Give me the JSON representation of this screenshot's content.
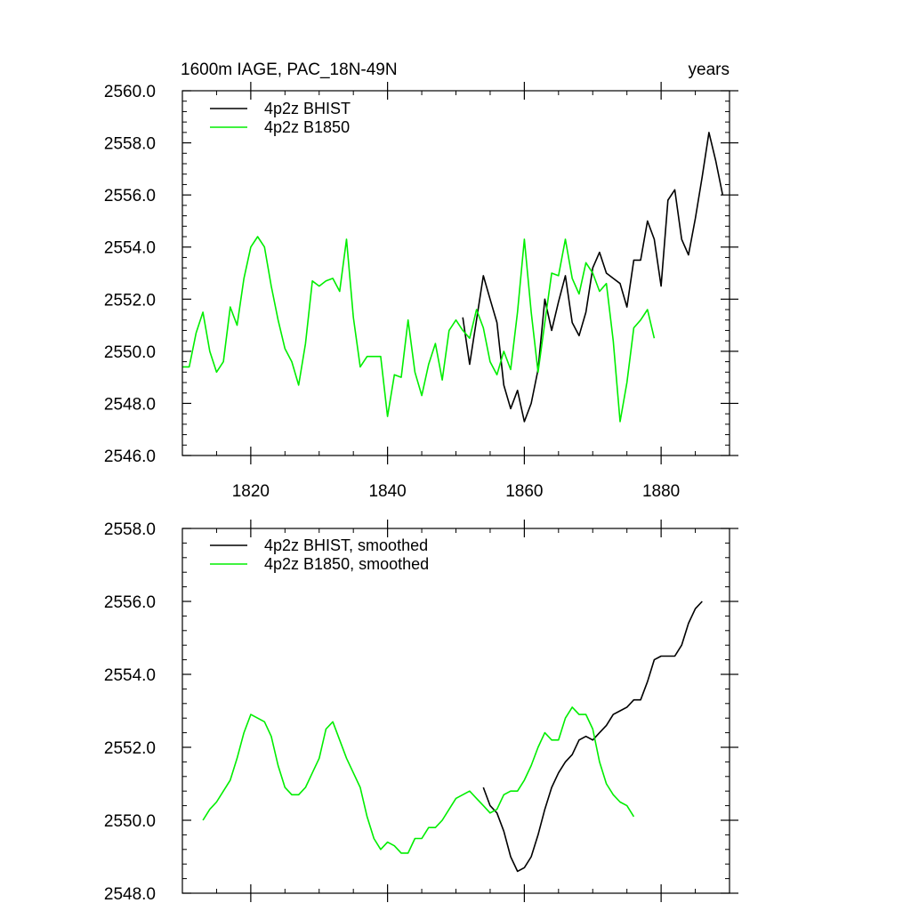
{
  "colors": {
    "bhist": "#000000",
    "b1850": "#00ee00"
  },
  "chart_data": [
    {
      "type": "line",
      "title_left": "1600m IAGE, PAC_18N-49N",
      "title_right": "years",
      "xlim": [
        1810,
        1890
      ],
      "ylim": [
        2546,
        2560
      ],
      "x_ticks": [
        1820,
        1840,
        1860,
        1880
      ],
      "x_tick_labels": [
        "1820",
        "1840",
        "1860",
        "1880"
      ],
      "y_ticks": [
        2546,
        2548,
        2550,
        2552,
        2554,
        2556,
        2558,
        2560
      ],
      "y_tick_labels": [
        "2546.0",
        "2548.0",
        "2550.0",
        "2552.0",
        "2554.0",
        "2556.0",
        "2558.0",
        "2560.0"
      ],
      "legend_position": "top-left",
      "series": [
        {
          "name": "4p2z BHIST",
          "color": "#000000",
          "x": [
            1851,
            1852,
            1853,
            1854,
            1855,
            1856,
            1857,
            1858,
            1859,
            1860,
            1861,
            1862,
            1863,
            1864,
            1865,
            1866,
            1867,
            1868,
            1869,
            1870,
            1871,
            1872,
            1873,
            1874,
            1875,
            1876,
            1877,
            1878,
            1879,
            1880,
            1881,
            1882,
            1883,
            1884,
            1885,
            1886,
            1887,
            1888,
            1889
          ],
          "y": [
            2551.3,
            2549.5,
            2551.2,
            2552.9,
            2552.0,
            2551.1,
            2548.7,
            2547.8,
            2548.5,
            2547.3,
            2548.0,
            2549.3,
            2552.0,
            2550.8,
            2551.9,
            2552.9,
            2551.1,
            2550.6,
            2551.5,
            2553.2,
            2553.8,
            2553.0,
            2552.8,
            2552.6,
            2551.7,
            2553.5,
            2553.5,
            2555.0,
            2554.3,
            2552.5,
            2555.8,
            2556.2,
            2554.3,
            2553.7,
            2555.1,
            2556.7,
            2558.4,
            2557.3,
            2556.0
          ]
        },
        {
          "name": "4p2z B1850",
          "color": "#00ee00",
          "x": [
            1810,
            1811,
            1812,
            1813,
            1814,
            1815,
            1816,
            1817,
            1818,
            1819,
            1820,
            1821,
            1822,
            1823,
            1824,
            1825,
            1826,
            1827,
            1828,
            1829,
            1830,
            1831,
            1832,
            1833,
            1834,
            1835,
            1836,
            1837,
            1838,
            1839,
            1840,
            1841,
            1842,
            1843,
            1844,
            1845,
            1846,
            1847,
            1848,
            1849,
            1850,
            1851,
            1852,
            1853,
            1854,
            1855,
            1856,
            1857,
            1858,
            1859,
            1860,
            1861,
            1862,
            1863,
            1864,
            1865,
            1866,
            1867,
            1868,
            1869,
            1870,
            1871,
            1872,
            1873,
            1874,
            1875,
            1876,
            1877,
            1878,
            1879
          ],
          "y": [
            2549.4,
            2549.4,
            2550.7,
            2551.5,
            2550.0,
            2549.2,
            2549.6,
            2551.7,
            2551.0,
            2552.8,
            2554.0,
            2554.4,
            2554.0,
            2552.5,
            2551.2,
            2550.1,
            2549.6,
            2548.7,
            2550.3,
            2552.7,
            2552.5,
            2552.7,
            2552.8,
            2552.3,
            2554.3,
            2551.3,
            2549.4,
            2549.8,
            2549.8,
            2549.8,
            2547.5,
            2549.1,
            2549.0,
            2551.2,
            2549.2,
            2548.3,
            2549.5,
            2550.3,
            2548.9,
            2550.8,
            2551.2,
            2550.8,
            2550.5,
            2551.6,
            2550.9,
            2549.6,
            2549.1,
            2550.0,
            2549.3,
            2551.5,
            2554.3,
            2551.5,
            2549.2,
            2551.1,
            2553.0,
            2552.9,
            2554.3,
            2552.8,
            2552.2,
            2553.4,
            2553.0,
            2552.3,
            2552.6,
            2550.4,
            2547.3,
            2548.8,
            2550.9,
            2551.2,
            2551.6,
            2550.5
          ]
        }
      ]
    },
    {
      "type": "line",
      "xlim": [
        1810,
        1890
      ],
      "ylim": [
        2548,
        2558
      ],
      "x_ticks": [
        1820,
        1840,
        1860,
        1880
      ],
      "y_ticks": [
        2548,
        2550,
        2552,
        2554,
        2556,
        2558
      ],
      "y_tick_labels": [
        "2548.0",
        "2550.0",
        "2552.0",
        "2554.0",
        "2556.0",
        "2558.0"
      ],
      "legend_position": "top-left",
      "series": [
        {
          "name": "4p2z BHIST, smoothed",
          "color": "#000000",
          "x": [
            1854,
            1855,
            1856,
            1857,
            1858,
            1859,
            1860,
            1861,
            1862,
            1863,
            1864,
            1865,
            1866,
            1867,
            1868,
            1869,
            1870,
            1871,
            1872,
            1873,
            1874,
            1875,
            1876,
            1877,
            1878,
            1879,
            1880,
            1881,
            1882,
            1883,
            1884,
            1885,
            1886
          ],
          "y": [
            2550.9,
            2550.4,
            2550.2,
            2549.7,
            2549.0,
            2548.6,
            2548.7,
            2549.0,
            2549.6,
            2550.3,
            2550.9,
            2551.3,
            2551.6,
            2551.8,
            2552.2,
            2552.3,
            2552.2,
            2552.4,
            2552.6,
            2552.9,
            2553.0,
            2553.1,
            2553.3,
            2553.3,
            2553.8,
            2554.4,
            2554.5,
            2554.5,
            2554.5,
            2554.8,
            2555.4,
            2555.8,
            2556.0
          ]
        },
        {
          "name": "4p2z B1850, smoothed",
          "color": "#00ee00",
          "x": [
            1813,
            1814,
            1815,
            1816,
            1817,
            1818,
            1819,
            1820,
            1821,
            1822,
            1823,
            1824,
            1825,
            1826,
            1827,
            1828,
            1829,
            1830,
            1831,
            1832,
            1833,
            1834,
            1835,
            1836,
            1837,
            1838,
            1839,
            1840,
            1841,
            1842,
            1843,
            1844,
            1845,
            1846,
            1847,
            1848,
            1849,
            1850,
            1851,
            1852,
            1853,
            1854,
            1855,
            1856,
            1857,
            1858,
            1859,
            1860,
            1861,
            1862,
            1863,
            1864,
            1865,
            1866,
            1867,
            1868,
            1869,
            1870,
            1871,
            1872,
            1873,
            1874,
            1875,
            1876
          ],
          "y": [
            2550.0,
            2550.3,
            2550.5,
            2550.8,
            2551.1,
            2551.7,
            2552.4,
            2552.9,
            2552.8,
            2552.7,
            2552.3,
            2551.5,
            2550.9,
            2550.7,
            2550.7,
            2550.9,
            2551.3,
            2551.7,
            2552.5,
            2552.7,
            2552.2,
            2551.7,
            2551.3,
            2550.9,
            2550.1,
            2549.5,
            2549.2,
            2549.4,
            2549.3,
            2549.1,
            2549.1,
            2549.5,
            2549.5,
            2549.8,
            2549.8,
            2550.0,
            2550.3,
            2550.6,
            2550.7,
            2550.8,
            2550.6,
            2550.4,
            2550.2,
            2550.3,
            2550.7,
            2550.8,
            2550.8,
            2551.1,
            2551.5,
            2552.0,
            2552.4,
            2552.2,
            2552.2,
            2552.8,
            2553.1,
            2552.9,
            2552.9,
            2552.5,
            2551.6,
            2551.0,
            2550.7,
            2550.5,
            2550.4,
            2550.1
          ]
        }
      ]
    }
  ]
}
